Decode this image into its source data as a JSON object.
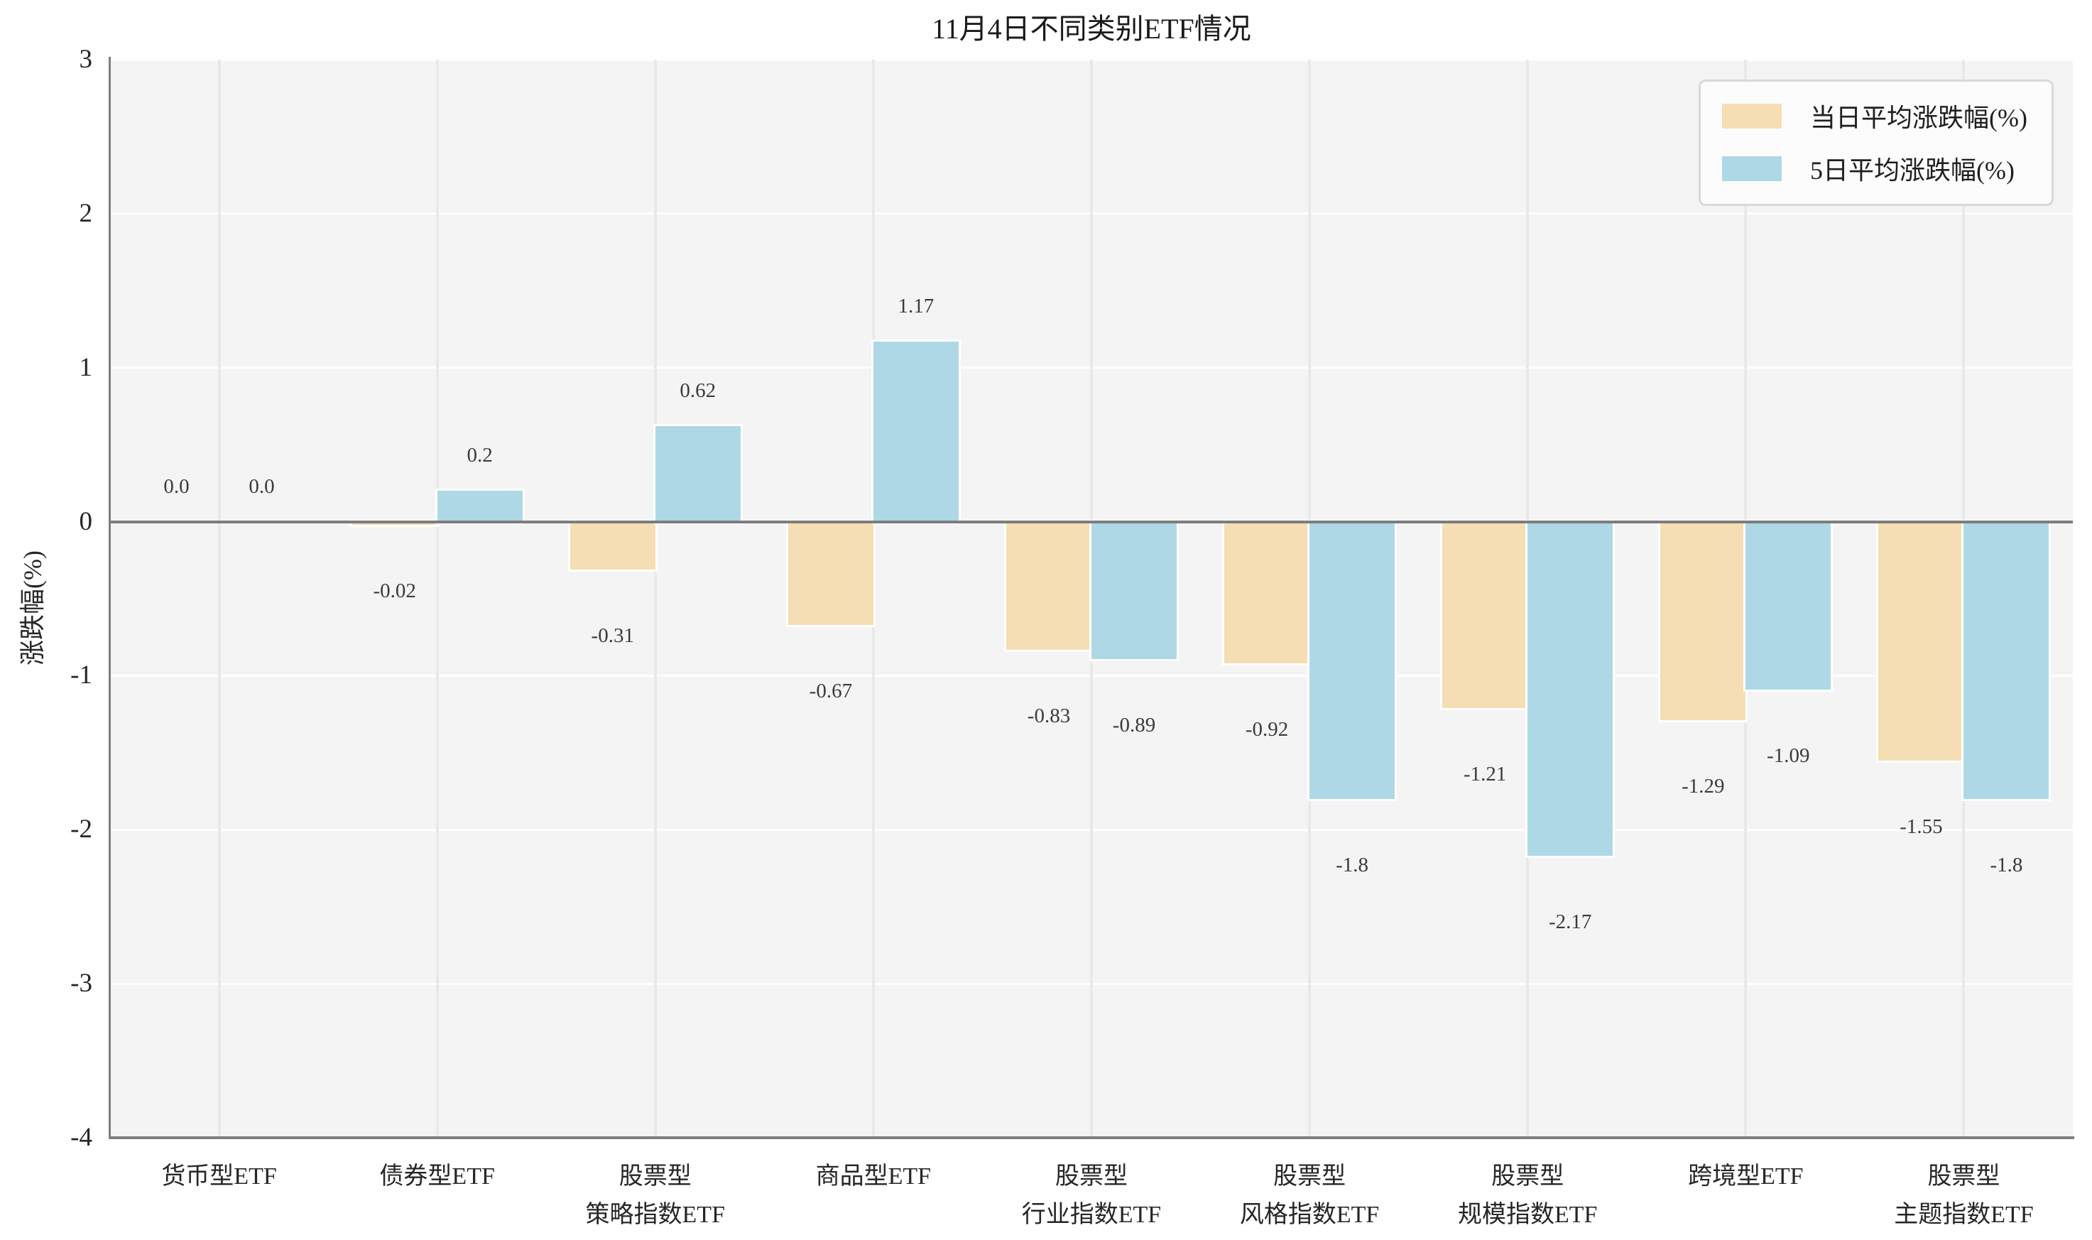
{
  "chart_data": {
    "type": "bar",
    "title": "11月4日不同类别ETF情况",
    "ylabel": "涨跌幅(%)",
    "xlabel": "",
    "ylim": [
      -4,
      3
    ],
    "yticks": [
      "3",
      "2",
      "1",
      "0",
      "-1",
      "-2",
      "-3",
      "-4"
    ],
    "ytick_values": [
      3,
      2,
      1,
      0,
      -1,
      -2,
      -3,
      -4
    ],
    "grid": true,
    "legend_position": "upper right",
    "categories": [
      "货币型ETF",
      "债券型ETF",
      "股票型\n策略指数ETF",
      "商品型ETF",
      "股票型\n行业指数ETF",
      "股票型\n风格指数ETF",
      "股票型\n规模指数ETF",
      "跨境型ETF",
      "股票型\n主题指数ETF"
    ],
    "series": [
      {
        "name": "当日平均涨跌幅(%)",
        "color": "#f5deb3",
        "values": [
          0.0,
          -0.02,
          -0.31,
          -0.67,
          -0.83,
          -0.92,
          -1.21,
          -1.29,
          -1.55
        ],
        "labels": [
          "0.0",
          "-0.02",
          "-0.31",
          "-0.67",
          "-0.83",
          "-0.92",
          "-1.21",
          "-1.29",
          "-1.55"
        ]
      },
      {
        "name": "5日平均涨跌幅(%)",
        "color": "#aed8e6",
        "values": [
          0.0,
          0.2,
          0.62,
          1.17,
          -0.89,
          -1.8,
          -2.17,
          -1.09,
          -1.8
        ],
        "labels": [
          "0.0",
          "0.2",
          "0.62",
          "1.17",
          "-0.89",
          "-1.8",
          "-2.17",
          "-1.09",
          "-1.8"
        ]
      }
    ],
    "colors": {
      "plot_background": "#f4f4f5",
      "figure_background": "#ffffff",
      "grid_horizontal": "#ffffff",
      "grid_vertical": "#e9e9ea",
      "axis_line": "#7f7f7f",
      "text": "#262626"
    }
  }
}
